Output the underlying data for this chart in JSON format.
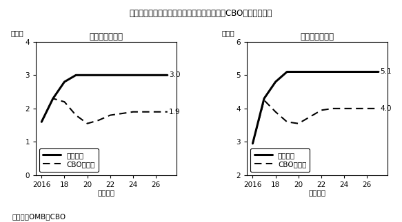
{
  "title": "図　予算教書における経済成長率の見通しとCBO見通しの比較",
  "source": "（出所）OMB、CBO",
  "xlabel": "（年度）",
  "left_title": "＜実質成長率＞",
  "left_ylabel": "（％）",
  "left_years": [
    2016,
    2017,
    2018,
    2019,
    2020,
    2021,
    2022,
    2023,
    2024,
    2025,
    2026,
    2027
  ],
  "left_budget": [
    1.6,
    2.3,
    2.8,
    3.0,
    3.0,
    3.0,
    3.0,
    3.0,
    3.0,
    3.0,
    3.0,
    3.0
  ],
  "left_cbo": [
    1.6,
    2.3,
    2.2,
    1.8,
    1.55,
    1.65,
    1.8,
    1.85,
    1.9,
    1.9,
    1.9,
    1.9
  ],
  "left_ylim": [
    0.0,
    4.0
  ],
  "left_yticks": [
    0.0,
    1.0,
    2.0,
    3.0,
    4.0
  ],
  "left_end_label_budget": "3.0",
  "left_end_label_cbo": "1.9",
  "right_title": "＜名目成長率＞",
  "right_ylabel": "（％）",
  "right_years": [
    2016,
    2017,
    2018,
    2019,
    2020,
    2021,
    2022,
    2023,
    2024,
    2025,
    2026,
    2027
  ],
  "right_budget": [
    2.95,
    4.3,
    4.8,
    5.1,
    5.1,
    5.1,
    5.1,
    5.1,
    5.1,
    5.1,
    5.1,
    5.1
  ],
  "right_cbo": [
    2.95,
    4.25,
    3.9,
    3.6,
    3.55,
    3.75,
    3.95,
    4.0,
    4.0,
    4.0,
    4.0,
    4.0
  ],
  "right_ylim": [
    2.0,
    6.0
  ],
  "right_yticks": [
    2.0,
    3.0,
    4.0,
    5.0,
    6.0
  ],
  "right_end_label_budget": "5.1",
  "right_end_label_cbo": "4.0",
  "xticks": [
    2016,
    2018,
    2020,
    2022,
    2024,
    2026
  ],
  "xticklabels": [
    "2016",
    "18",
    "20",
    "22",
    "24",
    "26"
  ],
  "xlim": [
    2015.5,
    2027.8
  ],
  "legend_budget": "予算教書",
  "legend_cbo": "CBO見通し",
  "line_color": "#000000",
  "bg_color": "#ffffff",
  "box_color": "#000000"
}
